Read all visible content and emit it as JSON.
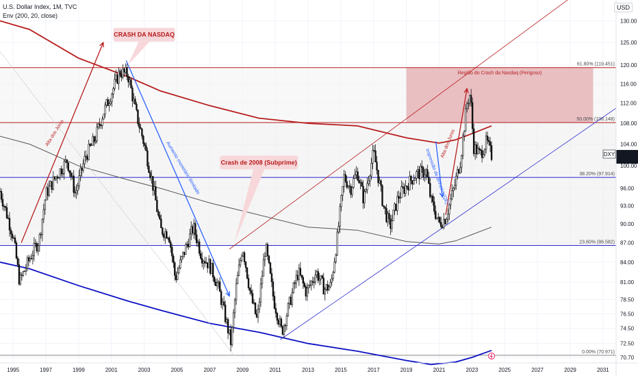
{
  "header": {
    "title": "U.S. Dollar Index, 1M, TVC",
    "indicator": "Env (200, 20, close)",
    "currency_button": "USD"
  },
  "price_badge": {
    "symbol": "DXY",
    "price": "101.895",
    "countdown": "8d 5h"
  },
  "chart_data": {
    "type": "candlestick",
    "title": "U.S. Dollar Index, 1M, TVC",
    "x_ticks": [
      "1995",
      "1997",
      "1999",
      "2001",
      "2003",
      "2005",
      "2007",
      "2009",
      "2011",
      "2013",
      "2015",
      "2017",
      "2019",
      "2021",
      "2023",
      "2025",
      "2027",
      "2029",
      "2031"
    ],
    "xlim": [
      1994.2,
      2031.8
    ],
    "y_ticks": [
      "70.70",
      "72.50",
      "74.50",
      "76.50",
      "78.50",
      "81.00",
      "84.00",
      "87.00",
      "90.00",
      "93.00",
      "96.00",
      "100.00",
      "104.00",
      "108.00",
      "112.00",
      "116.00",
      "120.00",
      "125.00",
      "130.00"
    ],
    "ylim": [
      70.0,
      135.0
    ],
    "y_scale": "log",
    "price_series": [
      [
        1994.2,
        95.5
      ],
      [
        1995.0,
        88.0
      ],
      [
        1995.4,
        81.0
      ],
      [
        1996.0,
        84.5
      ],
      [
        1996.6,
        87.5
      ],
      [
        1997.0,
        95.0
      ],
      [
        1997.6,
        98.0
      ],
      [
        1998.3,
        101.0
      ],
      [
        1998.8,
        95.0
      ],
      [
        1999.4,
        101.5
      ],
      [
        2000.0,
        105.0
      ],
      [
        2000.5,
        110.0
      ],
      [
        2001.0,
        114.0
      ],
      [
        2001.5,
        118.5
      ],
      [
        2002.0,
        118.0
      ],
      [
        2002.5,
        110.0
      ],
      [
        2003.0,
        104.0
      ],
      [
        2003.5,
        97.0
      ],
      [
        2004.0,
        89.0
      ],
      [
        2004.5,
        88.5
      ],
      [
        2004.9,
        81.5
      ],
      [
        2005.5,
        86.0
      ],
      [
        2006.0,
        89.5
      ],
      [
        2006.5,
        85.0
      ],
      [
        2007.0,
        83.5
      ],
      [
        2007.5,
        80.5
      ],
      [
        2008.0,
        75.5
      ],
      [
        2008.3,
        72.5
      ],
      [
        2008.6,
        80.0
      ],
      [
        2009.0,
        86.5
      ],
      [
        2009.5,
        79.0
      ],
      [
        2009.9,
        75.5
      ],
      [
        2010.4,
        86.5
      ],
      [
        2010.9,
        78.5
      ],
      [
        2011.4,
        74.0
      ],
      [
        2011.7,
        76.5
      ],
      [
        2012.4,
        82.5
      ],
      [
        2012.9,
        79.5
      ],
      [
        2013.5,
        82.5
      ],
      [
        2014.0,
        80.0
      ],
      [
        2014.4,
        80.5
      ],
      [
        2014.8,
        88.0
      ],
      [
        2015.2,
        98.0
      ],
      [
        2015.6,
        96.0
      ],
      [
        2016.0,
        99.0
      ],
      [
        2016.4,
        94.0
      ],
      [
        2016.9,
        101.0
      ],
      [
        2017.0,
        102.5
      ],
      [
        2017.6,
        93.0
      ],
      [
        2018.0,
        89.5
      ],
      [
        2018.5,
        94.5
      ],
      [
        2019.0,
        96.5
      ],
      [
        2019.6,
        98.5
      ],
      [
        2020.2,
        99.0
      ],
      [
        2020.5,
        94.0
      ],
      [
        2021.0,
        90.0
      ],
      [
        2021.4,
        91.0
      ],
      [
        2021.9,
        96.0
      ],
      [
        2022.3,
        101.0
      ],
      [
        2022.7,
        112.0
      ],
      [
        2022.9,
        114.0
      ],
      [
        2023.1,
        103.5
      ],
      [
        2023.5,
        102.0
      ],
      [
        2023.9,
        104.5
      ],
      [
        2024.2,
        101.9
      ]
    ],
    "envelope_upper": [
      [
        1994.2,
        130
      ],
      [
        1996,
        128
      ],
      [
        1999,
        121.5
      ],
      [
        2002,
        117.5
      ],
      [
        2004,
        114.5
      ],
      [
        2007,
        111.5
      ],
      [
        2010,
        109
      ],
      [
        2013,
        108
      ],
      [
        2016,
        107.5
      ],
      [
        2019,
        105.2
      ],
      [
        2021,
        104.2
      ],
      [
        2022,
        104.8
      ],
      [
        2023,
        106
      ],
      [
        2024.2,
        107.5
      ]
    ],
    "envelope_basis": [
      [
        1994.2,
        105.5
      ],
      [
        1996,
        104
      ],
      [
        1999,
        100
      ],
      [
        2002,
        97.5
      ],
      [
        2004,
        96
      ],
      [
        2007,
        93.5
      ],
      [
        2010,
        91.5
      ],
      [
        2013,
        89.5
      ],
      [
        2016,
        89
      ],
      [
        2019,
        87.2
      ],
      [
        2021,
        86.8
      ],
      [
        2022,
        87.3
      ],
      [
        2023,
        88.3
      ],
      [
        2024.2,
        89.5
      ]
    ],
    "envelope_lower": [
      [
        1994.2,
        84
      ],
      [
        1996,
        83
      ],
      [
        1999,
        80.5
      ],
      [
        2002,
        78.3
      ],
      [
        2004,
        77
      ],
      [
        2007,
        75.2
      ],
      [
        2010,
        74
      ],
      [
        2013,
        72.5
      ],
      [
        2016,
        71.5
      ],
      [
        2019,
        70.3
      ],
      [
        2020.5,
        69.8
      ],
      [
        2022,
        70.1
      ],
      [
        2023,
        70.7
      ],
      [
        2024.2,
        71.6
      ]
    ],
    "fibonacci": [
      {
        "level": "61.80% (119.451)",
        "value": 119.451
      },
      {
        "level": "50.00% (108.148)",
        "value": 108.148
      },
      {
        "level": "38.20% (97.914)",
        "value": 97.914
      },
      {
        "level": "23.60% (86.582)",
        "value": 86.582
      },
      {
        "level": "0.00% (70.971)",
        "value": 70.971
      }
    ],
    "zone_label": "Região do Crash da Nasdaq (Perigoso)",
    "callouts": [
      {
        "text": "CRASH DA NASDAQ"
      },
      {
        "text": "Crash de 2008 (Subprime)"
      }
    ],
    "annotations": [
      {
        "text": "Alta dos Juros",
        "color": "#b71c1c"
      },
      {
        "text": "Aumento monetário ilimitado",
        "color": "#2962ff"
      },
      {
        "text": "Impressão de dinheiro (QE)",
        "color": "#2962ff"
      },
      {
        "text": "Alta dos Juros",
        "color": "#b71c1c"
      }
    ]
  },
  "colors": {
    "upper_envelope": "#b71c1c",
    "basis": "#555555",
    "lower_envelope": "#0d10c4",
    "fib_red": "#b71c1c",
    "fib_blue": "#2929d0",
    "zone": "#e3a6ab",
    "candles": "#111111",
    "arrow_red": "#b71c1c",
    "arrow_blue": "#2962ff"
  }
}
